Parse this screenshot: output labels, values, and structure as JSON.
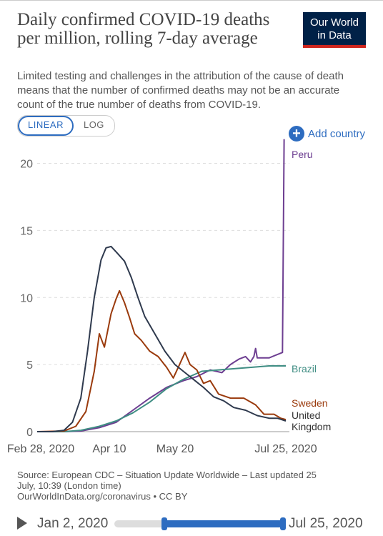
{
  "header": {
    "title": "Daily confirmed COVID-19 deaths per million, rolling 7-day average",
    "subtitle": "Limited testing and challenges in the attribution of the cause of death means that the number of confirmed deaths may not be an accurate count of the true number of deaths from COVID-19.",
    "logo_line1": "Our World",
    "logo_line2": "in Data"
  },
  "controls": {
    "linear_label": "LINEAR",
    "log_label": "LOG",
    "add_country_label": "Add country",
    "add_icon": "plus-circle-icon"
  },
  "colors": {
    "accent": "#2d6cc0",
    "Peru": "#6d3e91",
    "Brazil": "#3f8d83",
    "Sweden": "#9a3a0c",
    "United Kingdom": "#2f3a4e"
  },
  "chart_data": {
    "type": "line",
    "title": "Daily confirmed COVID-19 deaths per million, rolling 7-day average",
    "xlabel": "",
    "ylabel": "",
    "x_ticks": [
      "Feb 28, 2020",
      "Apr 10",
      "May 20",
      "Jul 25, 2020"
    ],
    "y_ticks": [
      "0",
      "5",
      "10",
      "15",
      "20"
    ],
    "ylim": [
      0,
      22
    ],
    "grid": "horizontal dashed",
    "x_range": [
      "2020-02-28",
      "2020-07-25"
    ],
    "series": [
      {
        "name": "Peru",
        "label_lines": [
          "Peru"
        ],
        "points": [
          [
            "2020-02-28",
            0
          ],
          [
            "2020-03-15",
            0
          ],
          [
            "2020-03-25",
            0.05
          ],
          [
            "2020-04-05",
            0.3
          ],
          [
            "2020-04-15",
            0.7
          ],
          [
            "2020-04-25",
            1.6
          ],
          [
            "2020-05-05",
            2.5
          ],
          [
            "2020-05-15",
            3.3
          ],
          [
            "2020-05-25",
            3.8
          ],
          [
            "2020-06-02",
            4.1
          ],
          [
            "2020-06-10",
            4.6
          ],
          [
            "2020-06-17",
            4.4
          ],
          [
            "2020-06-22",
            5.0
          ],
          [
            "2020-06-27",
            5.4
          ],
          [
            "2020-07-01",
            5.6
          ],
          [
            "2020-07-04",
            5.2
          ],
          [
            "2020-07-06",
            5.6
          ],
          [
            "2020-07-07",
            6.2
          ],
          [
            "2020-07-08",
            5.5
          ],
          [
            "2020-07-15",
            5.5
          ],
          [
            "2020-07-23",
            5.9
          ],
          [
            "2020-07-24",
            21.8
          ]
        ]
      },
      {
        "name": "Brazil",
        "label_lines": [
          "Brazil"
        ],
        "points": [
          [
            "2020-02-28",
            0
          ],
          [
            "2020-03-15",
            0
          ],
          [
            "2020-03-25",
            0.1
          ],
          [
            "2020-04-05",
            0.4
          ],
          [
            "2020-04-15",
            0.8
          ],
          [
            "2020-04-25",
            1.4
          ],
          [
            "2020-05-05",
            2.2
          ],
          [
            "2020-05-15",
            3.2
          ],
          [
            "2020-05-25",
            3.9
          ],
          [
            "2020-06-05",
            4.5
          ],
          [
            "2020-06-15",
            4.6
          ],
          [
            "2020-06-25",
            4.7
          ],
          [
            "2020-07-05",
            4.8
          ],
          [
            "2020-07-15",
            4.9
          ],
          [
            "2020-07-25",
            4.9
          ]
        ]
      },
      {
        "name": "Sweden",
        "label_lines": [
          "Sweden"
        ],
        "points": [
          [
            "2020-02-28",
            0
          ],
          [
            "2020-03-15",
            0.05
          ],
          [
            "2020-03-22",
            0.4
          ],
          [
            "2020-03-28",
            1.5
          ],
          [
            "2020-04-02",
            4.5
          ],
          [
            "2020-04-05",
            7.3
          ],
          [
            "2020-04-08",
            6.3
          ],
          [
            "2020-04-12",
            8.8
          ],
          [
            "2020-04-15",
            9.9
          ],
          [
            "2020-04-17",
            10.5
          ],
          [
            "2020-04-20",
            9.6
          ],
          [
            "2020-04-23",
            8.5
          ],
          [
            "2020-04-26",
            7.3
          ],
          [
            "2020-04-30",
            6.8
          ],
          [
            "2020-05-05",
            6.0
          ],
          [
            "2020-05-10",
            5.6
          ],
          [
            "2020-05-15",
            4.8
          ],
          [
            "2020-05-19",
            4.0
          ],
          [
            "2020-05-22",
            4.8
          ],
          [
            "2020-05-26",
            5.9
          ],
          [
            "2020-05-29",
            5.0
          ],
          [
            "2020-06-02",
            4.6
          ],
          [
            "2020-06-06",
            3.6
          ],
          [
            "2020-06-10",
            3.8
          ],
          [
            "2020-06-15",
            2.8
          ],
          [
            "2020-06-22",
            2.5
          ],
          [
            "2020-06-30",
            2.5
          ],
          [
            "2020-07-07",
            2.0
          ],
          [
            "2020-07-12",
            1.3
          ],
          [
            "2020-07-18",
            1.3
          ],
          [
            "2020-07-22",
            1.0
          ],
          [
            "2020-07-25",
            0.9
          ]
        ]
      },
      {
        "name": "United Kingdom",
        "label_lines": [
          "United",
          "Kingdom"
        ],
        "points": [
          [
            "2020-02-28",
            0
          ],
          [
            "2020-03-08",
            0
          ],
          [
            "2020-03-15",
            0.1
          ],
          [
            "2020-03-20",
            0.7
          ],
          [
            "2020-03-25",
            2.5
          ],
          [
            "2020-03-29",
            6.0
          ],
          [
            "2020-04-02",
            10.0
          ],
          [
            "2020-04-06",
            12.8
          ],
          [
            "2020-04-09",
            13.7
          ],
          [
            "2020-04-12",
            13.8
          ],
          [
            "2020-04-15",
            13.4
          ],
          [
            "2020-04-20",
            12.7
          ],
          [
            "2020-04-24",
            11.5
          ],
          [
            "2020-04-28",
            10.0
          ],
          [
            "2020-05-02",
            8.6
          ],
          [
            "2020-05-08",
            7.3
          ],
          [
            "2020-05-14",
            6.0
          ],
          [
            "2020-05-20",
            5.0
          ],
          [
            "2020-05-26",
            4.4
          ],
          [
            "2020-06-01",
            3.8
          ],
          [
            "2020-06-06",
            3.3
          ],
          [
            "2020-06-12",
            2.6
          ],
          [
            "2020-06-18",
            2.3
          ],
          [
            "2020-06-24",
            1.8
          ],
          [
            "2020-07-01",
            1.6
          ],
          [
            "2020-07-08",
            1.2
          ],
          [
            "2020-07-15",
            1.0
          ],
          [
            "2020-07-20",
            1.0
          ],
          [
            "2020-07-25",
            0.8
          ]
        ]
      }
    ]
  },
  "source": {
    "line1": "Source: European CDC – Situation Update Worldwide – Last updated 25",
    "line2": "July, 10:39 (London time)",
    "line3": "OurWorldInData.org/coronavirus • CC BY"
  },
  "timeline": {
    "start_label": "Jan 2, 2020",
    "end_label": "Jul 25, 2020",
    "play_icon": "play-icon"
  }
}
